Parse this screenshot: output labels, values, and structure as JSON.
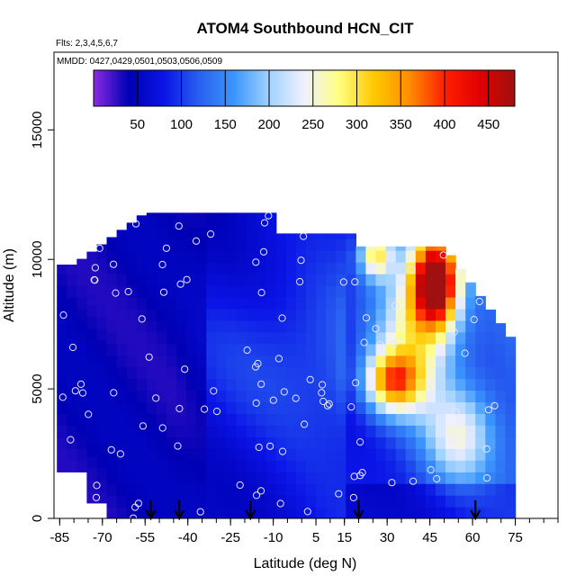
{
  "chart_data": {
    "type": "heatmap",
    "title": "ATOM4 Southbound HCN_CIT",
    "flights_label": "Flts: 2,3,4,5,6,7",
    "dates_label": "MMDD: 0427,0429,0501,0503,0506,0509",
    "xlabel": "Latitude (deg N)",
    "ylabel": "Altitude (m)",
    "xlim": [
      -87,
      90
    ],
    "ylim": [
      0,
      18000
    ],
    "xticks": [
      -85,
      -70,
      -55,
      -40,
      -25,
      -10,
      5,
      15,
      30,
      45,
      60,
      75
    ],
    "yticks": [
      0,
      5000,
      10000,
      15000
    ],
    "colorbar": {
      "range": [
        0,
        480
      ],
      "ticks": [
        50,
        100,
        150,
        200,
        250,
        300,
        350,
        400,
        450
      ],
      "colors": [
        "#8a2be2",
        "#0000b4",
        "#0a14e6",
        "#2860f0",
        "#3c96ff",
        "#a0d2ff",
        "#f0f0ff",
        "#ffff80",
        "#ffc800",
        "#ff8c00",
        "#ff2000",
        "#e00000",
        "#a01010"
      ]
    },
    "arrow_latitudes": [
      -53,
      -43,
      -18,
      20,
      61
    ],
    "grid": false,
    "legend": "colorbar top"
  }
}
